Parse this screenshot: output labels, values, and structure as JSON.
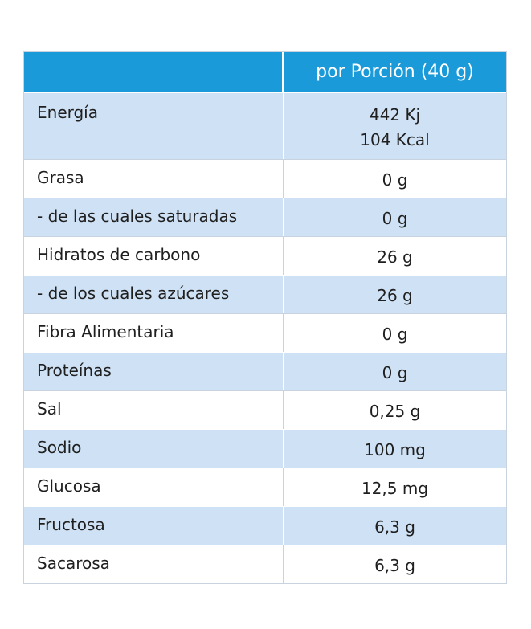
{
  "table": {
    "header": {
      "column_label": "por Porción (40 g)"
    },
    "rows": [
      {
        "label": "Energía",
        "value_lines": [
          "442 Kj",
          "104 Kcal"
        ]
      },
      {
        "label": "Grasa",
        "value": "0 g"
      },
      {
        "label": " - de las cuales saturadas",
        "value": "0 g"
      },
      {
        "label": "Hidratos de carbono",
        "value": "26 g"
      },
      {
        "label": " - de los cuales azúcares",
        "value": "26 g"
      },
      {
        "label": "Fibra Alimentaria",
        "value": "0 g"
      },
      {
        "label": "Proteínas",
        "value": "0 g"
      },
      {
        "label": "Sal",
        "value": "0,25 g"
      },
      {
        "label": "Sodio",
        "value": "100 mg"
      },
      {
        "label": "Glucosa",
        "value": "12,5 mg"
      },
      {
        "label": "Fructosa",
        "value": "6,3 g"
      },
      {
        "label": "Sacarosa",
        "value": "6,3 g"
      }
    ],
    "colors": {
      "header": "#1a9ad9",
      "row_alt": "#cfe1f4",
      "row_plain": "#ffffff",
      "text": "#1f1f1f"
    }
  }
}
